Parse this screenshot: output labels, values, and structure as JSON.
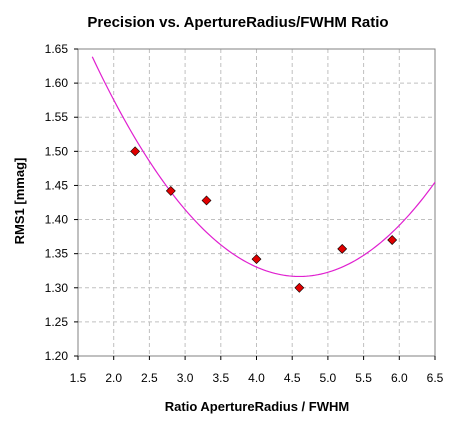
{
  "chart_data": {
    "type": "scatter",
    "title": "Precision vs. ApertureRadius/FWHM Ratio",
    "xlabel": "Ratio ApertureRadius / FWHM",
    "ylabel": "RMS1 [mmag]",
    "xlim": [
      1.5,
      6.5
    ],
    "ylim": [
      1.2,
      1.65
    ],
    "xticks": [
      "1.5",
      "2.0",
      "2.5",
      "3.0",
      "3.5",
      "4.0",
      "4.5",
      "5.0",
      "5.5",
      "6.0",
      "6.5"
    ],
    "yticks": [
      "1.20",
      "1.25",
      "1.30",
      "1.35",
      "1.40",
      "1.45",
      "1.50",
      "1.55",
      "1.60",
      "1.65"
    ],
    "grid": true,
    "series": [
      {
        "marker": "diamond",
        "color": "#e00000",
        "points": [
          {
            "x": 2.3,
            "y": 1.5
          },
          {
            "x": 2.8,
            "y": 1.442
          },
          {
            "x": 3.3,
            "y": 1.428
          },
          {
            "x": 4.0,
            "y": 1.342
          },
          {
            "x": 4.6,
            "y": 1.3
          },
          {
            "x": 5.2,
            "y": 1.357
          },
          {
            "x": 5.9,
            "y": 1.37
          }
        ]
      }
    ],
    "trendline": {
      "type": "polynomial",
      "color": "#e020d0",
      "coefficients": [
        2.1266,
        -0.35213,
        0.03827
      ],
      "x_range": [
        1.7,
        6.5
      ]
    }
  }
}
